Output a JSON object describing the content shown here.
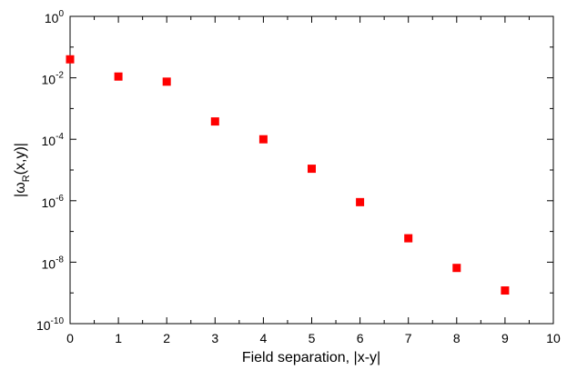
{
  "chart_data": {
    "type": "scatter",
    "xlabel": "Field separation, |x-y|",
    "ylabel": {
      "prefix": "|ω",
      "sub": "R",
      "suffix": "(x,y)|"
    },
    "xlim": [
      0,
      10
    ],
    "ylim": [
      1e-10,
      1
    ],
    "yscale": "log",
    "grid": false,
    "x_ticks": [
      "0",
      "1",
      "2",
      "3",
      "4",
      "5",
      "6",
      "7",
      "8",
      "9",
      "10"
    ],
    "y_ticks": [
      {
        "base": "10",
        "exp": "0"
      },
      {
        "base": "10",
        "exp": "-2"
      },
      {
        "base": "10",
        "exp": "-4"
      },
      {
        "base": "10",
        "exp": "-6"
      },
      {
        "base": "10",
        "exp": "-8"
      },
      {
        "base": "10",
        "exp": "-10"
      }
    ],
    "marker_color": "#ff0000",
    "x": [
      0,
      1,
      2,
      3,
      4,
      5,
      6,
      7,
      8,
      9
    ],
    "y": [
      0.04,
      0.011,
      0.0075,
      0.00038,
      0.0001,
      1.1e-05,
      9e-07,
      6e-08,
      6.5e-09,
      1.2e-09
    ]
  }
}
